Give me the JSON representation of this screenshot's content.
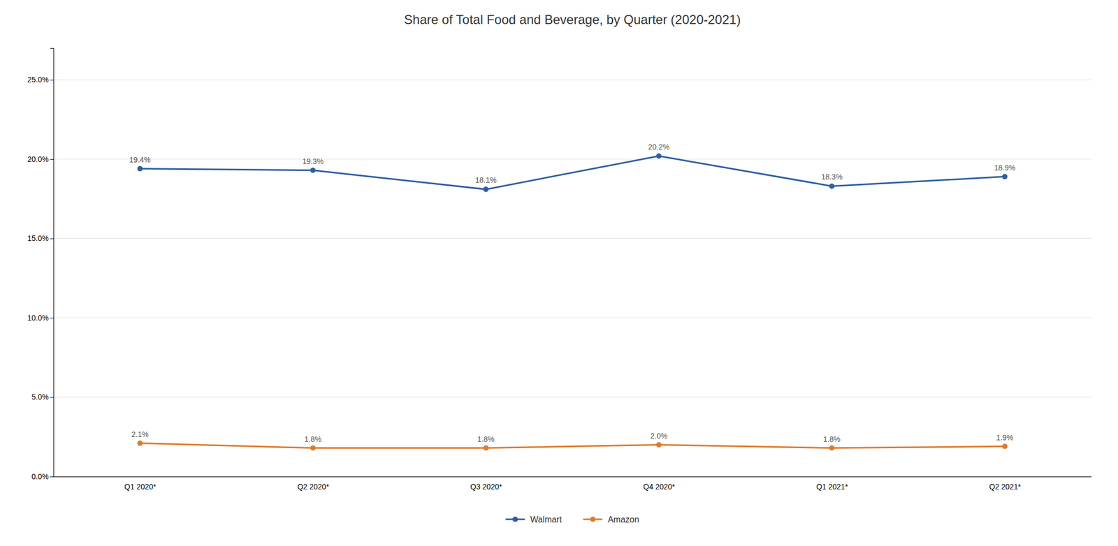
{
  "chart_data": {
    "type": "line",
    "title": "Share of Total Food and Beverage, by Quarter (2020-2021)",
    "categories": [
      "Q1 2020*",
      "Q2 2020*",
      "Q3 2020*",
      "Q4 2020*",
      "Q1 2021*",
      "Q2 2021*"
    ],
    "series": [
      {
        "name": "Walmart",
        "color": "#2e5fa3",
        "marker": "circle",
        "values": [
          0.194,
          0.193,
          0.181,
          0.202,
          0.183,
          0.189
        ],
        "value_labels": [
          "19.4%",
          "19.3%",
          "18.1%",
          "20.2%",
          "18.3%",
          "18.9%"
        ]
      },
      {
        "name": "Amazon",
        "color": "#e07b2a",
        "marker": "circle",
        "values": [
          0.021,
          0.018,
          0.018,
          0.02,
          0.018,
          0.019
        ],
        "value_labels": [
          "2.1%",
          "1.8%",
          "1.8%",
          "2.0%",
          "1.8%",
          "1.9%"
        ]
      }
    ],
    "ylim": [
      0,
      0.27
    ],
    "yticks": [
      {
        "value": 0.0,
        "label": "0.0%"
      },
      {
        "value": 0.05,
        "label": "5.0%"
      },
      {
        "value": 0.1,
        "label": "10.0%"
      },
      {
        "value": 0.15,
        "label": "15.0%"
      },
      {
        "value": 0.2,
        "label": "20.0%"
      },
      {
        "value": 0.25,
        "label": "25.0%"
      }
    ],
    "grid": true,
    "legend": "bottom",
    "data_labels": true
  }
}
